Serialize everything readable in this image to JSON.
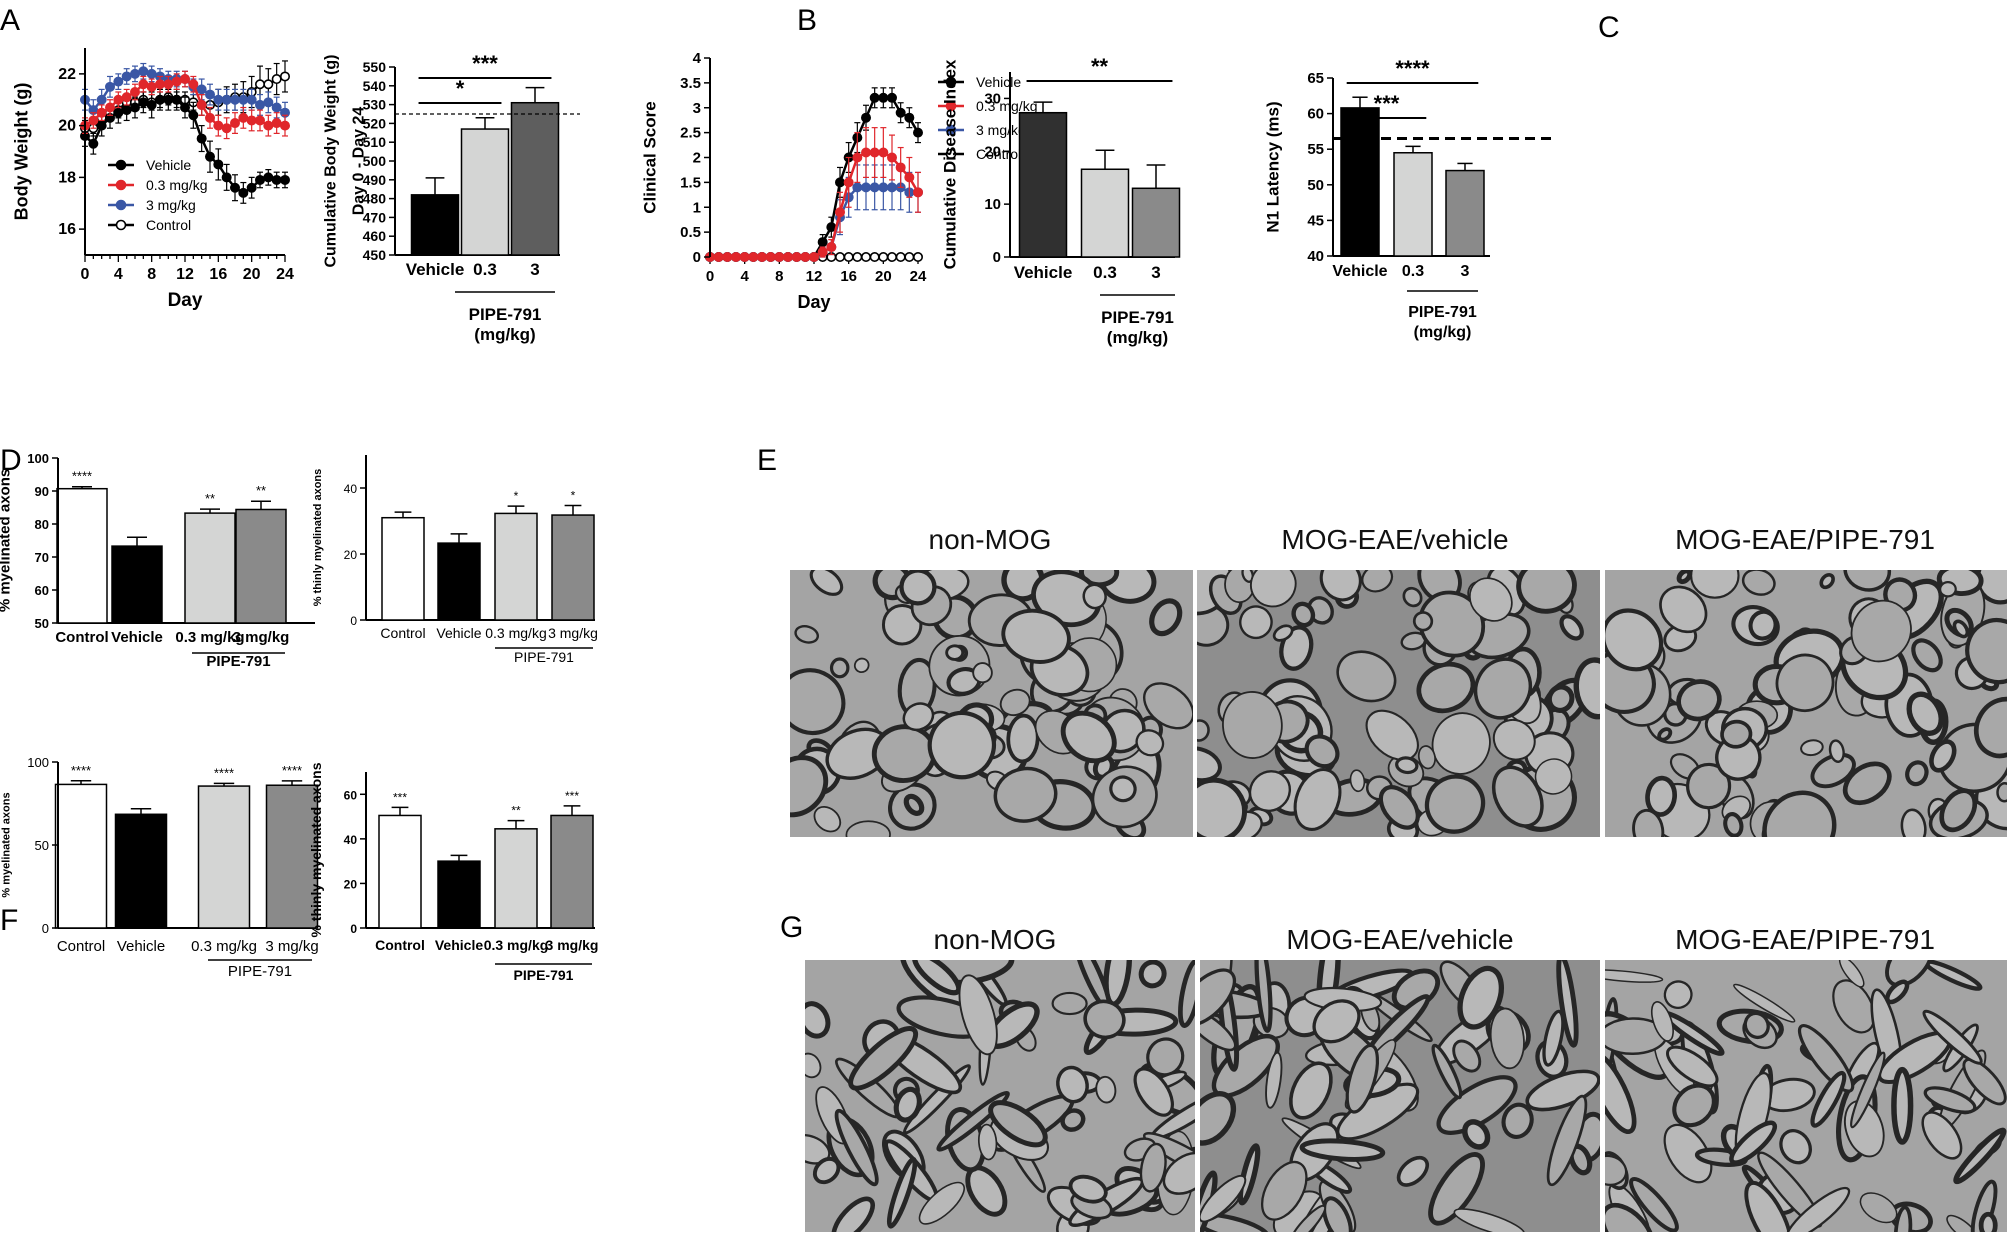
{
  "panel_labels": {
    "A": "A",
    "B": "B",
    "C": "C",
    "D": "D",
    "E": "E",
    "F": "F",
    "G": "G"
  },
  "colors": {
    "vehicle": "#000000",
    "low": "#e0262b",
    "high": "#3a57a5",
    "control": "#ffffff",
    "bar_light": "#d4d5d4",
    "bar_mid": "#8a8a8a",
    "bar_dark": "#5e5e5e",
    "bar_darkest": "#303030"
  },
  "micrographs": {
    "E": [
      "non-MOG",
      "MOG-EAE/vehicle",
      "MOG-EAE/PIPE-791"
    ],
    "G": [
      "non-MOG",
      "MOG-EAE/vehicle",
      "MOG-EAE/PIPE-791"
    ]
  },
  "chart_data": [
    {
      "id": "A1",
      "type": "line",
      "ylabel": "Body Weight (g)",
      "xlabel": "Day",
      "xlim": [
        0,
        24
      ],
      "ylim": [
        15,
        23
      ],
      "xticks": [
        0,
        4,
        8,
        12,
        16,
        20,
        24
      ],
      "yticks": [
        16,
        18,
        20,
        22
      ],
      "x": [
        0,
        1,
        2,
        3,
        4,
        5,
        6,
        7,
        8,
        9,
        10,
        11,
        12,
        13,
        14,
        15,
        16,
        17,
        18,
        19,
        20,
        21,
        22,
        23,
        24
      ],
      "series": [
        {
          "name": "Vehicle",
          "color": "#000000",
          "marker": "filled",
          "values": [
            19.6,
            19.3,
            20.0,
            20.3,
            20.5,
            20.6,
            20.7,
            20.9,
            20.8,
            21.0,
            21.0,
            21.0,
            20.7,
            20.4,
            19.5,
            18.8,
            18.5,
            18.0,
            17.6,
            17.4,
            17.6,
            17.9,
            18.0,
            17.9,
            17.9
          ],
          "err": [
            0.4,
            0.4,
            0.4,
            0.4,
            0.4,
            0.4,
            0.4,
            0.4,
            0.5,
            0.4,
            0.4,
            0.4,
            0.4,
            0.5,
            0.5,
            0.6,
            0.6,
            0.5,
            0.5,
            0.4,
            0.4,
            0.3,
            0.3,
            0.3,
            0.3
          ]
        },
        {
          "name": "0.3 mg/kg",
          "color": "#e0262b",
          "marker": "filled",
          "values": [
            20.0,
            20.2,
            20.5,
            20.7,
            21.0,
            21.1,
            21.3,
            21.6,
            21.5,
            21.6,
            21.6,
            21.7,
            21.8,
            21.6,
            20.8,
            20.3,
            20.0,
            19.9,
            20.1,
            20.3,
            20.2,
            20.2,
            20.0,
            20.1,
            20.0
          ],
          "err": [
            0.3,
            0.3,
            0.3,
            0.3,
            0.3,
            0.3,
            0.3,
            0.3,
            0.3,
            0.3,
            0.3,
            0.3,
            0.3,
            0.3,
            0.4,
            0.4,
            0.4,
            0.4,
            0.4,
            0.4,
            0.4,
            0.4,
            0.4,
            0.4,
            0.4
          ]
        },
        {
          "name": "3 mg/kg",
          "color": "#3a57a5",
          "marker": "filled",
          "values": [
            21.0,
            20.6,
            21.0,
            21.5,
            21.7,
            21.9,
            22.0,
            22.1,
            22.0,
            21.9,
            21.8,
            21.8,
            21.8,
            21.5,
            21.4,
            21.2,
            21.0,
            21.0,
            21.0,
            21.0,
            21.0,
            20.8,
            20.9,
            20.7,
            20.5
          ],
          "err": [
            0.4,
            0.4,
            0.4,
            0.4,
            0.3,
            0.3,
            0.3,
            0.3,
            0.3,
            0.3,
            0.3,
            0.3,
            0.3,
            0.3,
            0.4,
            0.4,
            0.4,
            0.4,
            0.4,
            0.4,
            0.4,
            0.4,
            0.4,
            0.4,
            0.4
          ]
        },
        {
          "name": "Control",
          "color": "#000000",
          "marker": "open",
          "values": [
            19.9,
            19.9,
            20.3,
            20.5,
            20.6,
            20.9,
            20.9,
            21.0,
            20.9,
            21.0,
            21.1,
            21.0,
            21.0,
            20.9,
            20.8,
            20.8,
            20.9,
            21.0,
            21.1,
            21.1,
            21.3,
            21.6,
            21.6,
            21.8,
            21.9
          ],
          "err": [
            0.3,
            0.3,
            0.3,
            0.3,
            0.3,
            0.3,
            0.3,
            0.3,
            0.3,
            0.3,
            0.3,
            0.3,
            0.3,
            0.3,
            0.4,
            0.4,
            0.5,
            0.5,
            0.5,
            0.6,
            0.6,
            0.7,
            0.6,
            0.6,
            0.6
          ]
        }
      ]
    },
    {
      "id": "A2",
      "type": "bar",
      "ylabel": "Cumulative Body Weight  (g)",
      "ylabel2": "Day 0 - Day 24",
      "categories": [
        "Vehicle",
        "0.3",
        "3"
      ],
      "values": [
        482,
        517,
        531
      ],
      "err": [
        9,
        6,
        8
      ],
      "ylim": [
        450,
        550
      ],
      "yticks": [
        450,
        460,
        470,
        480,
        490,
        500,
        510,
        520,
        530,
        540,
        550
      ],
      "reference_line": 525,
      "group_label": "PIPE-791",
      "group_label2": "(mg/kg)",
      "significance": [
        {
          "from": 0,
          "to": 1,
          "label": "*"
        },
        {
          "from": 0,
          "to": 2,
          "label": "***"
        }
      ]
    },
    {
      "id": "B1",
      "type": "line",
      "ylabel": "Clinical Score",
      "xlabel": "Day",
      "xlim": [
        0,
        24
      ],
      "ylim": [
        0,
        4
      ],
      "xticks": [
        0,
        4,
        8,
        12,
        16,
        20,
        24
      ],
      "yticks": [
        0.0,
        0.5,
        1.0,
        1.5,
        2.0,
        2.5,
        3.0,
        3.5,
        4.0
      ],
      "x": [
        0,
        1,
        2,
        3,
        4,
        5,
        6,
        7,
        8,
        9,
        10,
        11,
        12,
        13,
        14,
        15,
        16,
        17,
        18,
        19,
        20,
        21,
        22,
        23,
        24
      ],
      "series": [
        {
          "name": "Vehicle",
          "color": "#000000",
          "marker": "filled",
          "values": [
            0,
            0,
            0,
            0,
            0,
            0,
            0,
            0,
            0,
            0,
            0,
            0,
            0,
            0.3,
            0.6,
            1.5,
            2.0,
            2.4,
            2.8,
            3.2,
            3.2,
            3.2,
            2.9,
            2.8,
            2.5
          ],
          "err": [
            0,
            0,
            0,
            0,
            0,
            0,
            0,
            0,
            0,
            0,
            0,
            0,
            0,
            0.15,
            0.2,
            0.3,
            0.3,
            0.3,
            0.25,
            0.2,
            0.2,
            0.2,
            0.2,
            0.2,
            0.2
          ]
        },
        {
          "name": "0.3 mg/kg",
          "color": "#e0262b",
          "marker": "filled",
          "values": [
            0,
            0,
            0,
            0,
            0,
            0,
            0,
            0,
            0,
            0,
            0,
            0,
            0,
            0.1,
            0.2,
            0.9,
            1.5,
            2.0,
            2.1,
            2.1,
            2.1,
            2.0,
            1.8,
            1.6,
            1.3
          ],
          "err": [
            0,
            0,
            0,
            0,
            0,
            0,
            0,
            0,
            0,
            0,
            0,
            0,
            0,
            0.1,
            0.15,
            0.4,
            0.5,
            0.5,
            0.5,
            0.5,
            0.5,
            0.45,
            0.4,
            0.4,
            0.4
          ]
        },
        {
          "name": "3 mg/kg",
          "color": "#3a57a5",
          "marker": "filled",
          "values": [
            0,
            0,
            0,
            0,
            0,
            0,
            0,
            0,
            0,
            0,
            0,
            0,
            0,
            0.1,
            0.2,
            0.8,
            1.2,
            1.4,
            1.4,
            1.4,
            1.4,
            1.4,
            1.4,
            1.3,
            1.3
          ],
          "err": [
            0,
            0,
            0,
            0,
            0,
            0,
            0,
            0,
            0,
            0,
            0,
            0,
            0,
            0.1,
            0.15,
            0.35,
            0.4,
            0.45,
            0.45,
            0.45,
            0.45,
            0.45,
            0.45,
            0.4,
            0.4
          ]
        },
        {
          "name": "Control",
          "color": "#000000",
          "marker": "open",
          "values": [
            0,
            0,
            0,
            0,
            0,
            0,
            0,
            0,
            0,
            0,
            0,
            0,
            0,
            0,
            0,
            0,
            0,
            0,
            0,
            0,
            0,
            0,
            0,
            0,
            0
          ],
          "err": [
            0,
            0,
            0,
            0,
            0,
            0,
            0,
            0,
            0,
            0,
            0,
            0,
            0,
            0,
            0,
            0,
            0,
            0,
            0,
            0,
            0,
            0,
            0,
            0,
            0
          ]
        }
      ]
    },
    {
      "id": "B2",
      "type": "bar",
      "ylabel": "Cumulative Disease Index",
      "categories": [
        "Vehicle",
        "0.3",
        "3"
      ],
      "values": [
        27.3,
        16.6,
        13.0
      ],
      "err": [
        2.0,
        3.6,
        4.4
      ],
      "ylim": [
        0,
        35
      ],
      "yticks": [
        0,
        10,
        20,
        30
      ],
      "group_label": "PIPE-791",
      "group_label2": "(mg/kg)",
      "significance": [
        {
          "from": 0,
          "to": 2,
          "label": "**"
        }
      ]
    },
    {
      "id": "C",
      "type": "bar",
      "ylabel": "N1 Latency (ms)",
      "categories": [
        "Vehicle",
        "0.3",
        "3"
      ],
      "values": [
        60.8,
        54.5,
        52.0
      ],
      "err": [
        1.5,
        0.9,
        1.0
      ],
      "ylim": [
        40,
        65
      ],
      "yticks": [
        40,
        45,
        50,
        55,
        60,
        65
      ],
      "reference_line": 56.5,
      "group_label": "PIPE-791",
      "group_label2": "(mg/kg)",
      "significance": [
        {
          "from": 0,
          "to": 1,
          "label": "***"
        },
        {
          "from": 0,
          "to": 2,
          "label": "****"
        }
      ]
    },
    {
      "id": "D1",
      "type": "bar",
      "ylabel": "% myelinated axons",
      "categories": [
        "Control",
        "Vehicle",
        "0.3 mg/kg",
        "3 mg/kg"
      ],
      "values": [
        90.7,
        73.3,
        83.3,
        84.4
      ],
      "err": [
        0.6,
        2.7,
        1.2,
        2.5
      ],
      "ylim": [
        50,
        100
      ],
      "yticks": [
        50,
        60,
        70,
        80,
        90,
        100
      ],
      "group_label": "PIPE-791",
      "stars": [
        "****",
        "",
        "**",
        "**"
      ]
    },
    {
      "id": "D2",
      "type": "bar",
      "ylabel": "% thinly myelinated axons",
      "categories": [
        "Control",
        "Vehicle",
        "0.3 mg/kg",
        "3 mg/kg"
      ],
      "values": [
        31.0,
        23.3,
        32.3,
        31.8
      ],
      "err": [
        1.7,
        2.8,
        2.2,
        2.9
      ],
      "ylim": [
        0,
        50
      ],
      "yticks": [
        0,
        20,
        40
      ],
      "group_label": "PIPE-791",
      "stars": [
        "",
        "",
        "*",
        "*"
      ]
    },
    {
      "id": "F1",
      "type": "bar",
      "ylabel": "% myelinated axons",
      "categories": [
        "Control",
        "Vehicle",
        "0.3 mg/kg",
        "3 mg/kg"
      ],
      "values": [
        86.5,
        68.5,
        85.5,
        86.0
      ],
      "err": [
        2.2,
        3.3,
        1.6,
        2.6
      ],
      "ylim": [
        0,
        100
      ],
      "yticks": [
        0,
        50,
        100
      ],
      "group_label": "PIPE-791",
      "stars": [
        "****",
        "",
        "****",
        "****"
      ]
    },
    {
      "id": "F2",
      "type": "bar",
      "ylabel": "% thinly myelinated axons",
      "categories": [
        "Control",
        "Vehicle",
        "0.3 mg/kg",
        "3 mg/kg"
      ],
      "values": [
        50.5,
        30.0,
        44.5,
        50.5
      ],
      "err": [
        3.6,
        2.6,
        3.7,
        4.3
      ],
      "ylim": [
        0,
        70
      ],
      "yticks": [
        0,
        20,
        40,
        60
      ],
      "group_label": "PIPE-791",
      "stars": [
        "***",
        "",
        "**",
        "***"
      ]
    }
  ]
}
